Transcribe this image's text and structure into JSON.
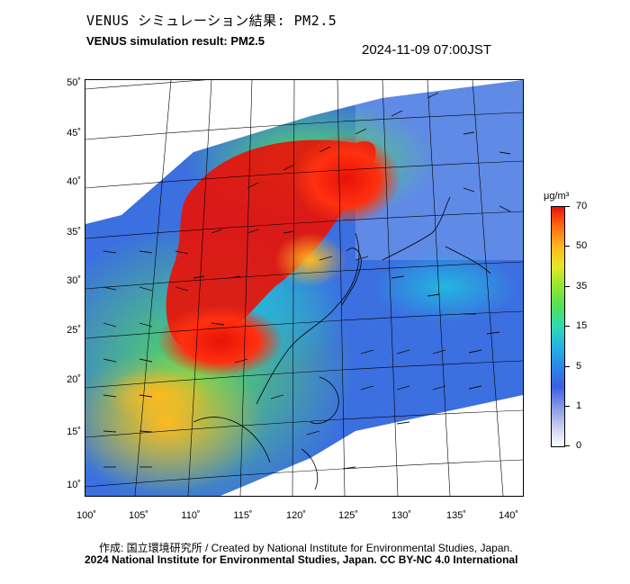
{
  "title_jp": "VENUS シミュレーション結果: PM2.5",
  "title_en": "VENUS simulation result: PM2.5",
  "timestamp": "2024-11-09 07:00JST",
  "latitude_labels": [
    "50˚",
    "45˚",
    "40˚",
    "35˚",
    "30˚",
    "25˚",
    "20˚",
    "15˚",
    "10˚"
  ],
  "longitude_labels": [
    "100˚",
    "105˚",
    "110˚",
    "115˚",
    "120˚",
    "125˚",
    "130˚",
    "135˚",
    "140˚"
  ],
  "colorbar": {
    "unit": "μg/m³",
    "labels": [
      "70",
      "50",
      "35",
      "15",
      "5",
      "1",
      "0"
    ],
    "colors": [
      "#ffffff",
      "#7f94e6",
      "#2a86e6",
      "#22b6e0",
      "#52e05a",
      "#e6e626",
      "#ff6a14",
      "#e81208"
    ]
  },
  "credit_line1": "作成: 国立環境研究所 / Created by National Institute for Environmental Studies, Japan.",
  "credit_line2": "2024 National Institute for Environmental Studies, Japan. CC BY-NC 4.0 International"
}
